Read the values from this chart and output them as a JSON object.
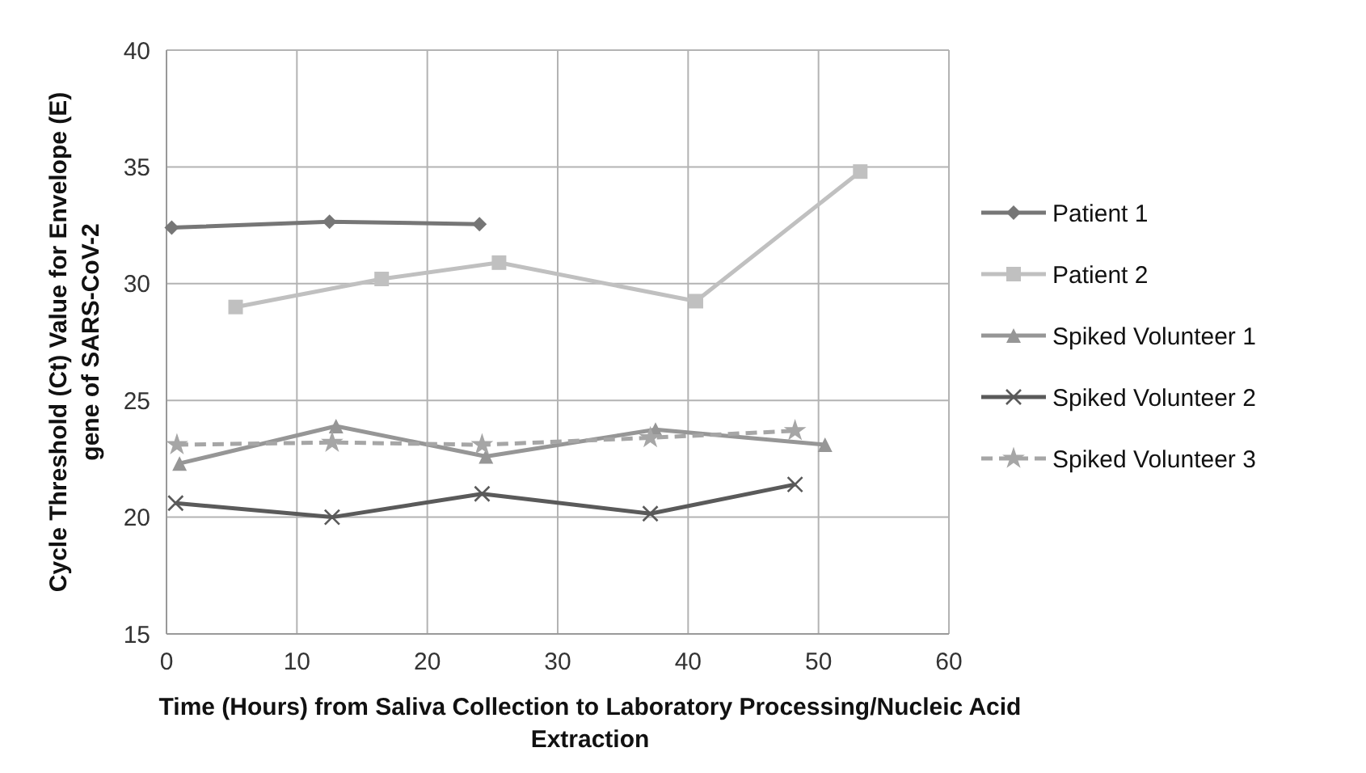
{
  "chart_data": {
    "type": "line",
    "xlabel": "Time (Hours) from Saliva Collection to Laboratory Processing/Nucleic Acid Extraction",
    "ylabel": "Cycle Threshold (Ct) Value for Envelope (E) gene of SARS-CoV-2",
    "xlim": [
      0,
      60
    ],
    "xticks": [
      0,
      10,
      20,
      30,
      40,
      50,
      60
    ],
    "ylim": [
      15,
      40
    ],
    "yticks": [
      15,
      20,
      25,
      30,
      35,
      40
    ],
    "grid": true,
    "legend": "right",
    "series": [
      {
        "name": "Patient 1",
        "color": "#767676",
        "marker": "diamond",
        "line_style": "solid",
        "x": [
          0.4,
          12.5,
          24.0
        ],
        "values": [
          32.4,
          32.65,
          32.55
        ]
      },
      {
        "name": "Patient 2",
        "color": "#c0c0c0",
        "marker": "square",
        "line_style": "solid",
        "x": [
          5.3,
          16.5,
          25.5,
          40.6,
          53.2
        ],
        "values": [
          29.0,
          30.2,
          30.9,
          29.25,
          34.8
        ]
      },
      {
        "name": "Spiked Volunteer 1",
        "color": "#969696",
        "marker": "triangle",
        "line_style": "solid",
        "x": [
          1.0,
          13.0,
          24.5,
          37.5,
          50.5
        ],
        "values": [
          22.3,
          23.9,
          22.6,
          23.75,
          23.1
        ]
      },
      {
        "name": "Spiked Volunteer 2",
        "color": "#5a5a5a",
        "marker": "cross",
        "line_style": "solid",
        "x": [
          0.7,
          12.7,
          24.2,
          37.1,
          48.2
        ],
        "values": [
          20.6,
          20.0,
          21.0,
          20.15,
          21.4
        ]
      },
      {
        "name": "Spiked Volunteer 3",
        "color": "#a6a6a6",
        "marker": "star",
        "line_style": "dashed",
        "x": [
          0.8,
          12.7,
          24.2,
          37.1,
          48.2
        ],
        "values": [
          23.1,
          23.2,
          23.1,
          23.4,
          23.7
        ]
      }
    ]
  }
}
